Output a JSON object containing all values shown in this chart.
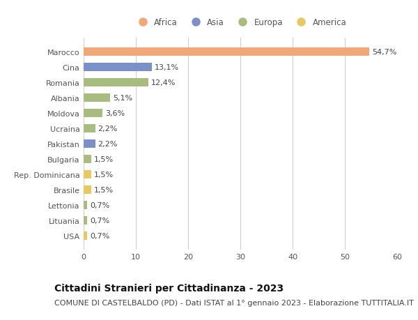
{
  "categories": [
    "Marocco",
    "Cina",
    "Romania",
    "Albania",
    "Moldova",
    "Ucraina",
    "Pakistan",
    "Bulgaria",
    "Rep. Dominicana",
    "Brasile",
    "Lettonia",
    "Lituania",
    "USA"
  ],
  "values": [
    54.7,
    13.1,
    12.4,
    5.1,
    3.6,
    2.2,
    2.2,
    1.5,
    1.5,
    1.5,
    0.7,
    0.7,
    0.7
  ],
  "labels": [
    "54,7%",
    "13,1%",
    "12,4%",
    "5,1%",
    "3,6%",
    "2,2%",
    "2,2%",
    "1,5%",
    "1,5%",
    "1,5%",
    "0,7%",
    "0,7%",
    "0,7%"
  ],
  "continents": [
    "Africa",
    "Asia",
    "Europa",
    "Europa",
    "Europa",
    "Europa",
    "Asia",
    "Europa",
    "America",
    "America",
    "Europa",
    "Europa",
    "America"
  ],
  "colors": {
    "Africa": "#F0A878",
    "Asia": "#7B8FC8",
    "Europa": "#A8BC80",
    "America": "#E8C860"
  },
  "legend_order": [
    "Africa",
    "Asia",
    "Europa",
    "America"
  ],
  "xlim": [
    0,
    60
  ],
  "xticks": [
    0,
    10,
    20,
    30,
    40,
    50,
    60
  ],
  "title": "Cittadini Stranieri per Cittadinanza - 2023",
  "subtitle": "COMUNE DI CASTELBALDO (PD) - Dati ISTAT al 1° gennaio 2023 - Elaborazione TUTTITALIA.IT",
  "bg_color": "#ffffff",
  "grid_color": "#cccccc",
  "title_fontsize": 10,
  "subtitle_fontsize": 8,
  "label_fontsize": 8,
  "tick_fontsize": 8,
  "legend_fontsize": 8.5
}
